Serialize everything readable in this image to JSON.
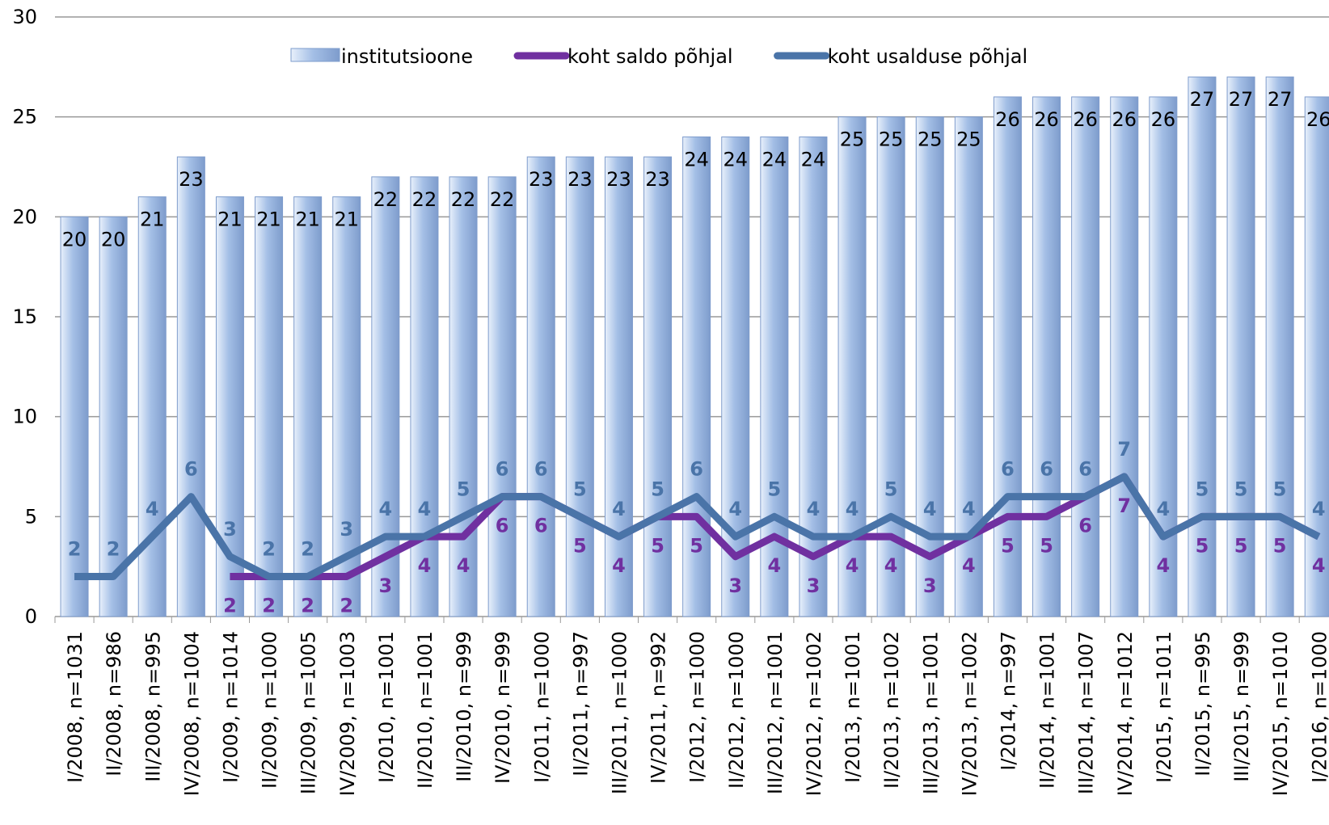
{
  "chart_data": {
    "type": "bar_line",
    "categories": [
      "I/2008, n=1031",
      "II/2008, n=986",
      "III/2008, n=995",
      "IV/2008, n=1004",
      "I/2009, n=1014",
      "II/2009, n=1000",
      "III/2009, n=1005",
      "IV/2009, n=1003",
      "I/2010, n=1001",
      "II/2010, n=1001",
      "III/2010, n=999",
      "IV/2010, n=999",
      "I/2011, n=1000",
      "II/2011, n=997",
      "III/2011, n=1000",
      "IV/2011, n=992",
      "I/2012, n=1000",
      "II/2012, n=1000",
      "III/2012, n=1001",
      "IV/2012, n=1002",
      "I/2013, n=1001",
      "II/2013, n=1002",
      "III/2013, n=1001",
      "IV/2013, n=1002",
      "I/2014, n=997",
      "II/2014, n=1001",
      "III/2014, n=1007",
      "IV/2014, n=1012",
      "I/2015, n=1011",
      "II/2015, n=995",
      "III/2015, n=999",
      "IV/2015, n=1010",
      "I/2016, n=1000"
    ],
    "series": [
      {
        "name": "institutsioone",
        "type": "bar",
        "color": "#a4bfe6",
        "values": [
          20,
          20,
          21,
          23,
          21,
          21,
          21,
          21,
          22,
          22,
          22,
          22,
          23,
          23,
          23,
          23,
          24,
          24,
          24,
          24,
          25,
          25,
          25,
          25,
          26,
          26,
          26,
          26,
          26,
          27,
          27,
          27,
          26
        ]
      },
      {
        "name": "koht saldo põhjal",
        "type": "line",
        "color": "#7030a0",
        "values": [
          null,
          null,
          null,
          null,
          2,
          2,
          2,
          2,
          3,
          4,
          4,
          6,
          6,
          5,
          4,
          5,
          5,
          3,
          4,
          3,
          4,
          4,
          3,
          4,
          5,
          5,
          6,
          7,
          4,
          5,
          5,
          5,
          4
        ]
      },
      {
        "name": "koht usalduse põhjal",
        "type": "line",
        "color": "#4a74a8",
        "values": [
          2,
          2,
          4,
          6,
          3,
          2,
          2,
          3,
          4,
          4,
          5,
          6,
          6,
          5,
          4,
          5,
          6,
          4,
          5,
          4,
          4,
          5,
          4,
          4,
          6,
          6,
          6,
          7,
          4,
          5,
          5,
          5,
          4
        ]
      }
    ],
    "ylim": [
      0,
      30
    ],
    "yticks": [
      0,
      5,
      10,
      15,
      20,
      25,
      30
    ],
    "grid": true
  }
}
